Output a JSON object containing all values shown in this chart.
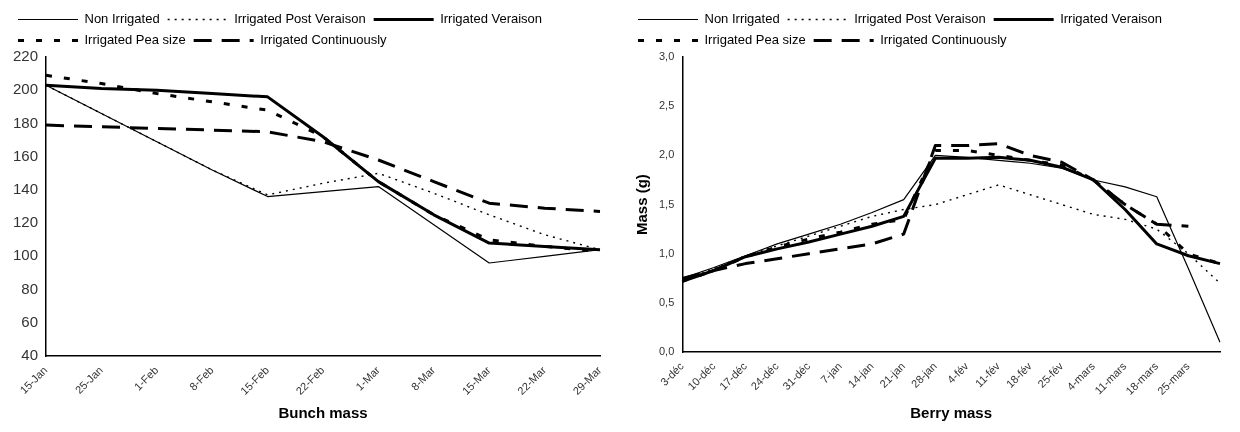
{
  "chart_data": [
    {
      "type": "line",
      "xlabel": "Bunch mass",
      "categories": [
        "15-Jan",
        "25-Jan",
        "1-Feb",
        "8-Feb",
        "15-Feb",
        "22-Feb",
        "1-Mar",
        "8-Mar",
        "15-Mar",
        "22-Mar",
        "29-Mar"
      ],
      "ylim": [
        40,
        220
      ],
      "yticks": [
        40,
        60,
        80,
        100,
        120,
        140,
        160,
        180,
        200,
        220
      ],
      "grid": false,
      "legend": "top",
      "marker": "none",
      "series": [
        {
          "name": "Non Irrigated",
          "color": "#000000",
          "line_style": "solid",
          "values": [
            203,
            186,
            169,
            152,
            136,
            139,
            142,
            119,
            96,
            100,
            104
          ]
        },
        {
          "name": "Irrigated Post Veraison",
          "color": "#000000",
          "line_style": "dotted",
          "values": [
            203,
            186,
            169,
            152,
            137,
            144,
            150,
            138,
            125,
            113,
            104
          ]
        },
        {
          "name": "Irrigated Veraison",
          "color": "#000000",
          "line_style": "solid",
          "values": [
            203,
            201,
            200,
            198,
            196,
            172,
            145,
            125,
            108,
            106,
            104
          ]
        },
        {
          "name": "Irrigated Pea size",
          "color": "#000000",
          "line_style": "dashed",
          "values": [
            209,
            204,
            198,
            193,
            188,
            172,
            145,
            125,
            110,
            106,
            103
          ]
        },
        {
          "name": "Irrigated Continuously",
          "color": "#000000",
          "line_style": "dashed",
          "values": [
            179,
            178,
            177,
            176,
            175,
            169,
            158,
            145,
            132,
            129,
            127
          ]
        }
      ]
    },
    {
      "type": "line",
      "xlabel": "Berry mass",
      "ylabel": "Mass (g)",
      "categories": [
        "3-déc",
        "10-déc",
        "17-déc",
        "24-déc",
        "31-déc",
        "7-jan",
        "14-jan",
        "21-jan",
        "28-jan",
        "4-fév",
        "11-fév",
        "18-fév",
        "25-fév",
        "4-mars",
        "11-mars",
        "18-mars",
        "25-mars",
        null
      ],
      "ylim": [
        0,
        3
      ],
      "yticks": [
        {
          "value": 0,
          "label": "0,0"
        },
        {
          "value": 0.5,
          "label": "0,5"
        },
        {
          "value": 1,
          "label": "1,0"
        },
        {
          "value": 1.5,
          "label": "1,5"
        },
        {
          "value": 2,
          "label": "2,0"
        },
        {
          "value": 2.5,
          "label": "2,5"
        },
        {
          "value": 3,
          "label": "3,0"
        }
      ],
      "grid": false,
      "legend": "top",
      "marker": "none",
      "series": [
        {
          "name": "Non Irrigated",
          "color": "#000000",
          "line_style": "solid",
          "values": [
            0.75,
            0.86,
            0.98,
            1.1,
            1.2,
            1.3,
            1.42,
            1.55,
            2.0,
            1.98,
            1.95,
            1.92,
            1.87,
            1.75,
            1.68,
            1.58,
            0.85,
            0.1
          ]
        },
        {
          "name": "Irrigated Post Veraison",
          "color": "#000000",
          "line_style": "dotted",
          "values": [
            0.72,
            0.85,
            0.98,
            1.08,
            1.18,
            1.28,
            1.38,
            1.45,
            1.5,
            1.6,
            1.7,
            1.6,
            1.5,
            1.4,
            1.35,
            1.25,
            1.0,
            0.7
          ]
        },
        {
          "name": "Irrigated Veraison",
          "color": "#000000",
          "line_style": "solid",
          "values": [
            0.72,
            0.83,
            0.97,
            1.05,
            1.12,
            1.2,
            1.28,
            1.38,
            1.97,
            1.97,
            1.98,
            1.95,
            1.88,
            1.75,
            1.45,
            1.1,
            0.98,
            0.9
          ]
        },
        {
          "name": "Irrigated Pea size",
          "color": "#000000",
          "line_style": "dashed",
          "values": [
            0.72,
            0.83,
            0.97,
            1.07,
            1.15,
            1.22,
            1.3,
            1.35,
            2.05,
            2.05,
            2.0,
            1.95,
            1.9,
            1.75,
            1.5,
            1.3,
            1.0,
            0.9
          ]
        },
        {
          "name": "Irrigated Continuously",
          "color": "#000000",
          "line_style": "dashed",
          "values": [
            0.75,
            0.83,
            0.9,
            0.95,
            1.0,
            1.05,
            1.1,
            1.2,
            2.1,
            2.1,
            2.12,
            2.0,
            1.93,
            1.75,
            1.5,
            1.3,
            1.28,
            null
          ]
        }
      ]
    }
  ]
}
